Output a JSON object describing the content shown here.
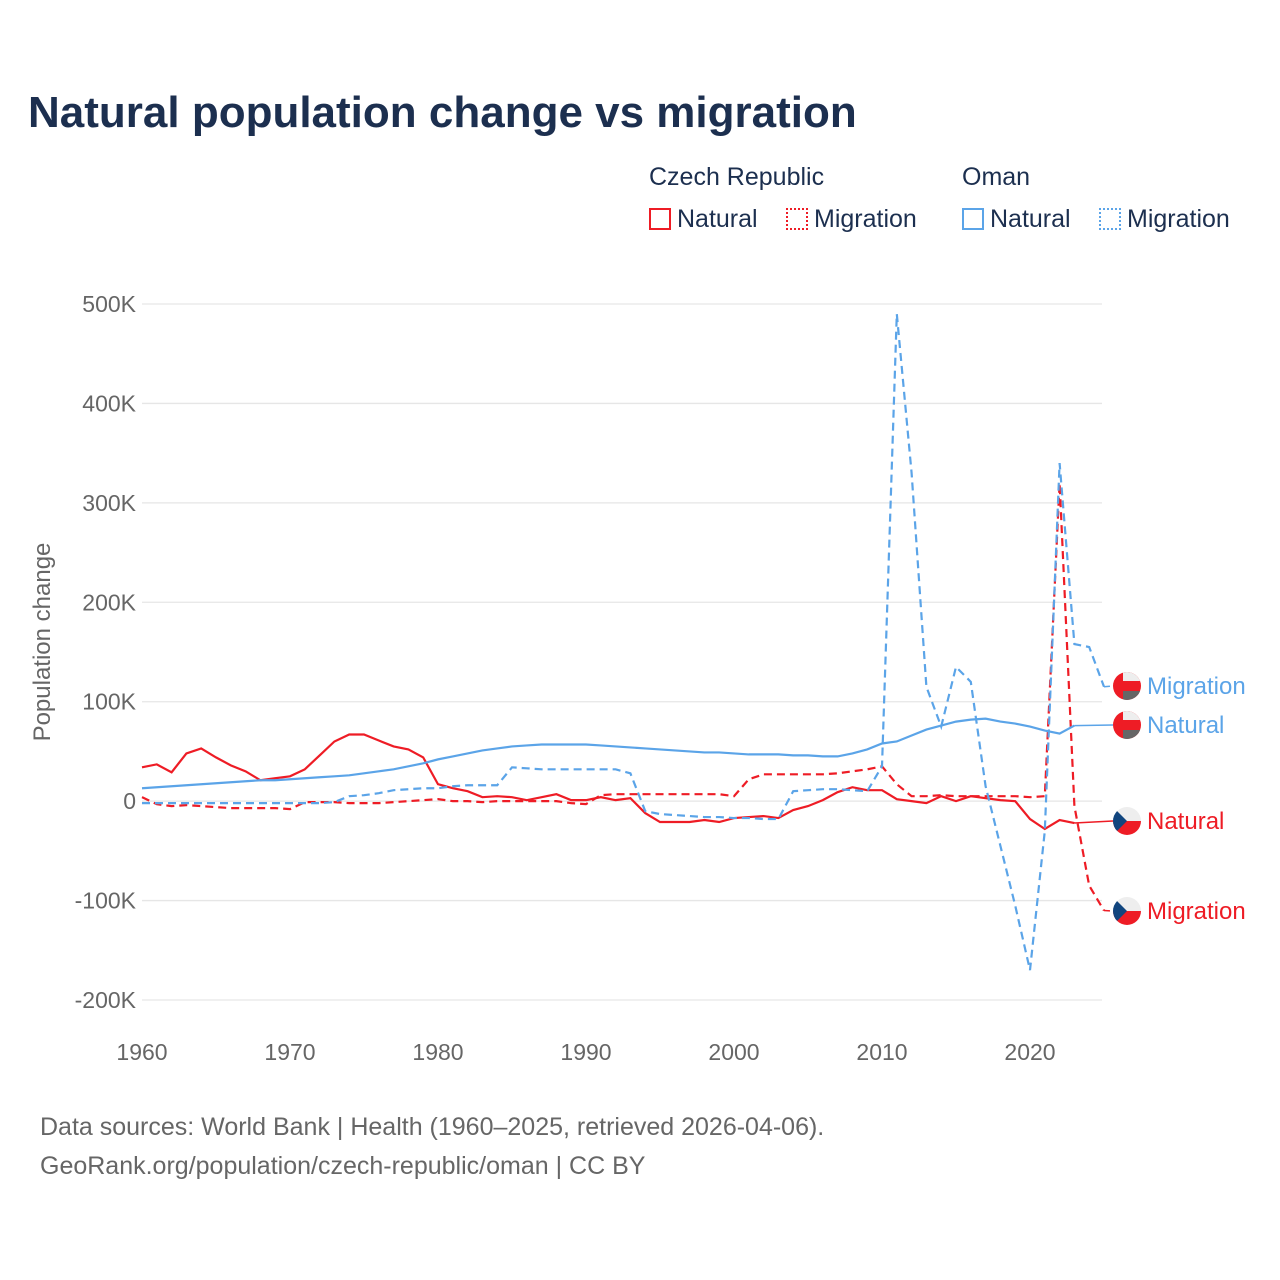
{
  "title": "Natural population change vs migration",
  "legend": {
    "groups": [
      {
        "name": "Czech Republic",
        "items": [
          "Natural",
          "Migration"
        ]
      },
      {
        "name": "Oman",
        "items": [
          "Natural",
          "Migration"
        ]
      }
    ]
  },
  "source_lines": [
    "Data sources: World Bank | Health (1960–2025, retrieved 2026-04-06).",
    "GeoRank.org/population/czech-republic/oman | CC BY"
  ],
  "colors": {
    "czech": "#ee1c25",
    "oman": "#5ba4e8"
  },
  "chart_data": {
    "type": "line",
    "title": "Natural population change vs migration",
    "xlabel": "",
    "ylabel": "Population change",
    "xlim": [
      1960,
      2025
    ],
    "ylim": [
      -200000,
      500000
    ],
    "x_ticks": [
      "1960",
      "1970",
      "1980",
      "1990",
      "2000",
      "2010",
      "2020"
    ],
    "y_ticks": [
      "500K",
      "400K",
      "300K",
      "200K",
      "100K",
      "0",
      "-100K",
      "-200K"
    ],
    "x_start": 1960,
    "series": [
      {
        "name": "Czech Republic Natural",
        "label": "Natural",
        "color": "#ee1c25",
        "dash": false,
        "values": [
          34,
          37,
          29,
          48,
          53,
          44,
          36,
          30,
          21,
          23,
          25,
          32,
          46,
          60,
          67,
          67,
          61,
          55,
          52,
          44,
          17,
          13,
          10,
          4,
          5,
          4,
          1,
          4,
          7,
          1,
          1,
          4,
          1,
          3,
          -12,
          -21,
          -21,
          -21,
          -19,
          -21,
          -17,
          -16,
          -15,
          -17,
          -9,
          -5,
          1,
          9,
          14,
          11,
          11,
          2,
          0,
          -2,
          5,
          0,
          5,
          3,
          1,
          0,
          -18,
          -28,
          -19,
          -22
        ]
      },
      {
        "name": "Czech Republic Migration",
        "label": "Migration",
        "color": "#ee1c25",
        "dash": true,
        "values": [
          4,
          -3,
          -5,
          -4,
          -5,
          -6,
          -7,
          -7,
          -7,
          -7,
          -8,
          -1,
          -1,
          -1,
          -2,
          -2,
          -2,
          -1,
          0,
          1,
          2,
          0,
          0,
          -1,
          0,
          0,
          0,
          0,
          0,
          -2,
          -3,
          6,
          7,
          7,
          7,
          7,
          7,
          7,
          7,
          7,
          5,
          22,
          27,
          27,
          27,
          27,
          27,
          28,
          30,
          32,
          35,
          17,
          5,
          5,
          6,
          5,
          5,
          5,
          5,
          5,
          4,
          5,
          320,
          -5,
          -85,
          -110
        ]
      },
      {
        "name": "Oman Natural",
        "label": "Natural",
        "color": "#5ba4e8",
        "dash": false,
        "values": [
          13,
          14,
          15,
          16,
          17,
          18,
          19,
          20,
          21,
          21,
          22,
          23,
          24,
          25,
          26,
          28,
          30,
          32,
          35,
          38,
          42,
          45,
          48,
          51,
          53,
          55,
          56,
          57,
          57,
          57,
          57,
          56,
          55,
          54,
          53,
          52,
          51,
          50,
          49,
          49,
          48,
          47,
          47,
          47,
          46,
          46,
          45,
          45,
          48,
          52,
          58,
          60,
          66,
          72,
          76,
          80,
          82,
          83,
          80,
          78,
          75,
          71,
          68,
          76
        ]
      },
      {
        "name": "Oman Migration",
        "label": "Migration",
        "color": "#5ba4e8",
        "dash": true,
        "values": [
          -2,
          -2,
          -2,
          -2,
          -2,
          -2,
          -2,
          -2,
          -2,
          -2,
          -2,
          -2,
          -2,
          -1,
          5,
          6,
          8,
          11,
          12,
          13,
          13,
          15,
          16,
          16,
          16,
          34,
          33,
          32,
          32,
          32,
          32,
          32,
          32,
          28,
          -10,
          -13,
          -14,
          -15,
          -16,
          -16,
          -17,
          -17,
          -18,
          -18,
          10,
          11,
          12,
          12,
          11,
          10,
          35,
          490,
          330,
          115,
          75,
          135,
          120,
          15,
          -45,
          -105,
          -170,
          -30,
          340,
          158,
          155,
          115
        ]
      }
    ],
    "value_unit": "thousands"
  }
}
